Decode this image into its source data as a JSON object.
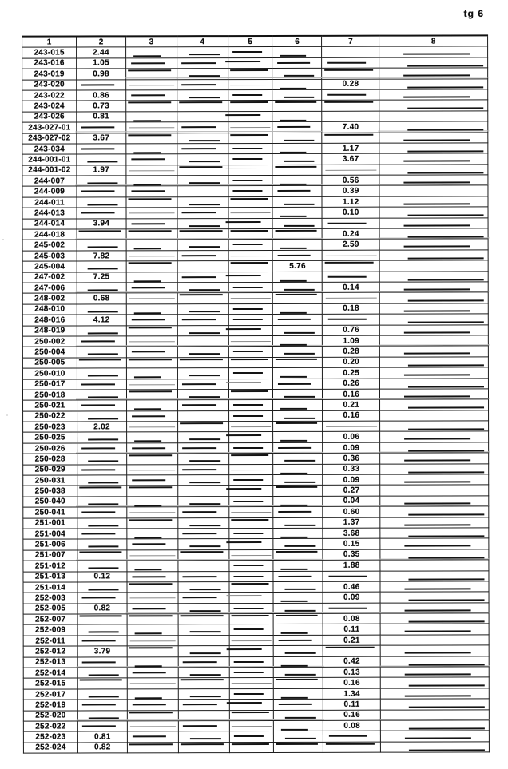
{
  "page": {
    "label": "tg 6"
  },
  "table": {
    "columns": [
      "1",
      "2",
      "3",
      "4",
      "5",
      "6",
      "7",
      "8"
    ],
    "rows": [
      {
        "code": "243-015",
        "col": 2,
        "value": "2.44"
      },
      {
        "code": "243-016",
        "col": 2,
        "value": "1.05"
      },
      {
        "code": "243-019",
        "col": 2,
        "value": "0.98"
      },
      {
        "code": "243-020",
        "col": 7,
        "value": "0.28"
      },
      {
        "code": "243-022",
        "col": 2,
        "value": "0.86"
      },
      {
        "code": "243-024",
        "col": 2,
        "value": "0.73"
      },
      {
        "code": "243-026",
        "col": 2,
        "value": "0.81"
      },
      {
        "code": "243-027-01",
        "col": 7,
        "value": "7.40"
      },
      {
        "code": "243-027-02",
        "col": 2,
        "value": "3.67"
      },
      {
        "code": "243-034",
        "col": 7,
        "value": "1.17"
      },
      {
        "code": "244-001-01",
        "col": 7,
        "value": "3.67"
      },
      {
        "code": "244-001-02",
        "col": 2,
        "value": "1.97"
      },
      {
        "code": "244-007",
        "col": 7,
        "value": "0.56"
      },
      {
        "code": "244-009",
        "col": 7,
        "value": "0.39"
      },
      {
        "code": "244-011",
        "col": 7,
        "value": "1.12"
      },
      {
        "code": "244-013",
        "col": 7,
        "value": "0.10"
      },
      {
        "code": "244-014",
        "col": 2,
        "value": "3.94"
      },
      {
        "code": "244-018",
        "col": 7,
        "value": "0.24"
      },
      {
        "code": "245-002",
        "col": 7,
        "value": "2.59"
      },
      {
        "code": "245-003",
        "col": 2,
        "value": "7.82"
      },
      {
        "code": "245-004",
        "col": 6,
        "value": "5.76"
      },
      {
        "code": "247-002",
        "col": 2,
        "value": "7.25"
      },
      {
        "code": "247-006",
        "col": 7,
        "value": "0.14"
      },
      {
        "code": "248-002",
        "col": 2,
        "value": "0.68"
      },
      {
        "code": "248-010",
        "col": 7,
        "value": "0.18"
      },
      {
        "code": "248-016",
        "col": 2,
        "value": "4.12"
      },
      {
        "code": "248-019",
        "col": 7,
        "value": "0.76"
      },
      {
        "code": "250-002",
        "col": 7,
        "value": "1.09"
      },
      {
        "code": "250-004",
        "col": 7,
        "value": "0.28"
      },
      {
        "code": "250-005",
        "col": 7,
        "value": "0.20"
      },
      {
        "code": "250-010",
        "col": 7,
        "value": "0.25"
      },
      {
        "code": "250-017",
        "col": 7,
        "value": "0.26"
      },
      {
        "code": "250-018",
        "col": 7,
        "value": "0.16"
      },
      {
        "code": "250-021",
        "col": 7,
        "value": "0.21"
      },
      {
        "code": "250-022",
        "col": 7,
        "value": "0.16"
      },
      {
        "code": "250-023",
        "col": 2,
        "value": "2.02"
      },
      {
        "code": "250-025",
        "col": 7,
        "value": "0.06"
      },
      {
        "code": "250-026",
        "col": 7,
        "value": "0.09"
      },
      {
        "code": "250-028",
        "col": 7,
        "value": "0.36"
      },
      {
        "code": "250-029",
        "col": 7,
        "value": "0.33"
      },
      {
        "code": "250-031",
        "col": 7,
        "value": "0.09"
      },
      {
        "code": "250-038",
        "col": 7,
        "value": "0.27"
      },
      {
        "code": "250-040",
        "col": 7,
        "value": "0.04"
      },
      {
        "code": "250-041",
        "col": 7,
        "value": "0.60"
      },
      {
        "code": "251-001",
        "col": 7,
        "value": "1.37"
      },
      {
        "code": "251-004",
        "col": 7,
        "value": "3.68"
      },
      {
        "code": "251-006",
        "col": 7,
        "value": "0.15"
      },
      {
        "code": "251-007",
        "col": 7,
        "value": "0.35"
      },
      {
        "code": "251-012",
        "col": 7,
        "value": "1.88"
      },
      {
        "code": "251-013",
        "col": 2,
        "value": "0.12"
      },
      {
        "code": "251-014",
        "col": 7,
        "value": "0.46"
      },
      {
        "code": "252-003",
        "col": 7,
        "value": "0.09"
      },
      {
        "code": "252-005",
        "col": 2,
        "value": "0.82"
      },
      {
        "code": "252-007",
        "col": 7,
        "value": "0.08"
      },
      {
        "code": "252-009",
        "col": 7,
        "value": "0.11"
      },
      {
        "code": "252-011",
        "col": 7,
        "value": "0.21"
      },
      {
        "code": "252-012",
        "col": 2,
        "value": "3.79"
      },
      {
        "code": "252-013",
        "col": 7,
        "value": "0.42"
      },
      {
        "code": "252-014",
        "col": 7,
        "value": "0.13"
      },
      {
        "code": "252-015",
        "col": 7,
        "value": "0.16"
      },
      {
        "code": "252-017",
        "col": 7,
        "value": "1.34"
      },
      {
        "code": "252-019",
        "col": 7,
        "value": "0.11"
      },
      {
        "code": "252-020",
        "col": 7,
        "value": "0.16"
      },
      {
        "code": "252-022",
        "col": 7,
        "value": "0.08"
      },
      {
        "code": "252-023",
        "col": 2,
        "value": "0.81"
      },
      {
        "code": "252-024",
        "col": 2,
        "value": "0.82"
      }
    ]
  }
}
